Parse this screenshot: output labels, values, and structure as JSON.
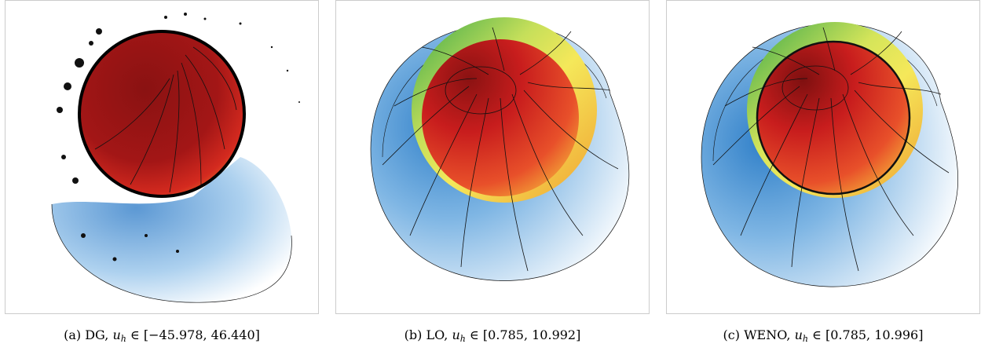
{
  "figures": [
    {
      "id": "a",
      "label": "(a)",
      "method": "DG",
      "range_text": "[−45.978, 46.440]"
    },
    {
      "id": "b",
      "label": "(b)",
      "method": "LO",
      "range_text": "[0.785, 10.992]"
    },
    {
      "id": "c",
      "label": "(c)",
      "method": "WENO",
      "range_text": "[0.785, 10.996]"
    }
  ],
  "caption_math": {
    "variable": "u",
    "subscript": "h",
    "relation": "∈"
  },
  "colors": {
    "frame": "#cccccc",
    "contour": "#111111",
    "core_dark": "#8a1212",
    "core_red": "#d42a1f",
    "orange": "#f08a2a",
    "yellow": "#f2e45a",
    "green": "#4cae4a",
    "blue": "#3f86cc",
    "light_blue": "#d6ebf8"
  }
}
